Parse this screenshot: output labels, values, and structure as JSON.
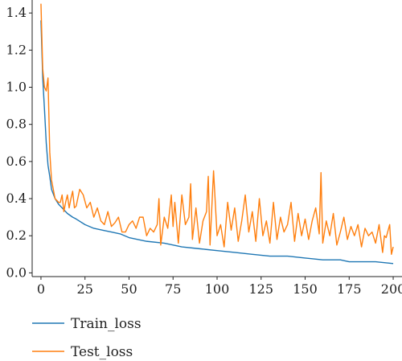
{
  "chart_data": {
    "type": "line",
    "title": "",
    "xlabel": "",
    "ylabel": "",
    "xlim": [
      -5,
      205
    ],
    "ylim": [
      -0.02,
      1.47
    ],
    "xticks": [
      0,
      25,
      50,
      75,
      100,
      125,
      150,
      175,
      200
    ],
    "yticks": [
      0.0,
      0.2,
      0.4,
      0.6,
      0.8,
      1.0,
      1.2,
      1.4
    ],
    "xtick_labels": [
      "0",
      "25",
      "50",
      "75",
      "100",
      "125",
      "150",
      "175",
      "200"
    ],
    "ytick_labels": [
      "0.0",
      "0.2",
      "0.4",
      "0.6",
      "0.8",
      "1.0",
      "1.2",
      "1.4"
    ],
    "grid": false,
    "legend_position": "below",
    "series": [
      {
        "name": "Train_loss",
        "color": "#1f77b4",
        "x": [
          0,
          1,
          2,
          3,
          4,
          5,
          6,
          8,
          10,
          12,
          15,
          18,
          20,
          25,
          30,
          35,
          40,
          45,
          50,
          60,
          70,
          80,
          90,
          100,
          110,
          120,
          130,
          140,
          150,
          160,
          170,
          175,
          180,
          190,
          200
        ],
        "y": [
          1.36,
          1.05,
          0.88,
          0.7,
          0.58,
          0.52,
          0.45,
          0.4,
          0.37,
          0.35,
          0.32,
          0.3,
          0.29,
          0.26,
          0.24,
          0.23,
          0.22,
          0.21,
          0.19,
          0.17,
          0.16,
          0.14,
          0.13,
          0.12,
          0.11,
          0.1,
          0.09,
          0.09,
          0.08,
          0.07,
          0.07,
          0.06,
          0.06,
          0.06,
          0.05
        ]
      },
      {
        "name": "Test_loss",
        "color": "#ff7f0e",
        "x": [
          0,
          1,
          2,
          3,
          4,
          5,
          6,
          8,
          10,
          11,
          12,
          13,
          14,
          15,
          16,
          17,
          18,
          19,
          20,
          22,
          24,
          26,
          28,
          30,
          32,
          34,
          36,
          38,
          40,
          42,
          44,
          46,
          48,
          50,
          52,
          54,
          56,
          58,
          60,
          62,
          64,
          66,
          67,
          68,
          70,
          72,
          74,
          75,
          76,
          78,
          80,
          82,
          84,
          85,
          86,
          88,
          90,
          92,
          94,
          95,
          96,
          98,
          100,
          102,
          104,
          106,
          108,
          110,
          112,
          114,
          116,
          118,
          120,
          122,
          124,
          126,
          128,
          130,
          132,
          134,
          136,
          138,
          140,
          142,
          144,
          146,
          148,
          150,
          152,
          154,
          156,
          158,
          159,
          160,
          162,
          164,
          166,
          168,
          170,
          172,
          174,
          176,
          178,
          180,
          182,
          184,
          186,
          188,
          190,
          192,
          194,
          195,
          196,
          198,
          199,
          200
        ],
        "y": [
          1.45,
          1.1,
          1.0,
          0.98,
          1.05,
          0.65,
          0.5,
          0.4,
          0.38,
          0.38,
          0.42,
          0.33,
          0.38,
          0.42,
          0.35,
          0.4,
          0.44,
          0.35,
          0.36,
          0.45,
          0.42,
          0.35,
          0.38,
          0.3,
          0.35,
          0.28,
          0.26,
          0.33,
          0.25,
          0.27,
          0.3,
          0.22,
          0.22,
          0.26,
          0.28,
          0.24,
          0.3,
          0.3,
          0.2,
          0.24,
          0.22,
          0.26,
          0.4,
          0.15,
          0.3,
          0.24,
          0.42,
          0.25,
          0.38,
          0.16,
          0.42,
          0.26,
          0.3,
          0.48,
          0.18,
          0.35,
          0.16,
          0.28,
          0.33,
          0.52,
          0.15,
          0.55,
          0.2,
          0.26,
          0.14,
          0.38,
          0.23,
          0.35,
          0.17,
          0.28,
          0.42,
          0.22,
          0.33,
          0.17,
          0.4,
          0.2,
          0.28,
          0.16,
          0.38,
          0.18,
          0.3,
          0.22,
          0.26,
          0.38,
          0.17,
          0.32,
          0.2,
          0.29,
          0.18,
          0.28,
          0.35,
          0.21,
          0.54,
          0.16,
          0.28,
          0.2,
          0.32,
          0.15,
          0.22,
          0.3,
          0.18,
          0.25,
          0.2,
          0.26,
          0.14,
          0.24,
          0.2,
          0.22,
          0.16,
          0.26,
          0.11,
          0.2,
          0.19,
          0.26,
          0.1,
          0.14
        ]
      }
    ]
  }
}
